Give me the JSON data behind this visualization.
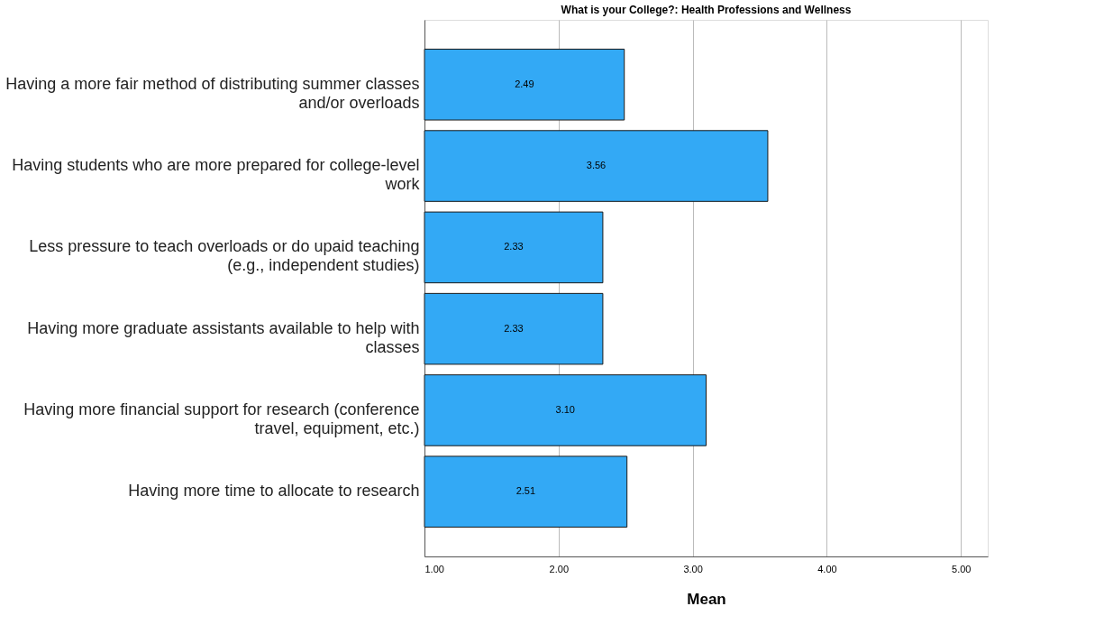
{
  "chart_data": {
    "type": "bar",
    "orientation": "horizontal",
    "title": "What is your College?: Health Professions and Wellness",
    "xlabel": "Mean",
    "categories": [
      "Having a more fair method of distributing summer classes and/or overloads",
      "Having students who are more prepared for college-level work",
      "Less pressure to teach overloads or do upaid teaching (e.g., independent studies)",
      "Having more graduate assistants available to help with classes",
      "Having more financial support for research (conference travel, equipment, etc.)",
      "Having more time to allocate to research"
    ],
    "values": [
      2.49,
      3.56,
      2.33,
      2.33,
      3.1,
      2.51
    ],
    "color": "#33a9f5",
    "xlim": [
      1,
      5.2
    ],
    "xticks": [
      {
        "value": 1,
        "label": "1.00"
      },
      {
        "value": 2,
        "label": "2.00"
      },
      {
        "value": 3,
        "label": "3.00"
      },
      {
        "value": 4,
        "label": "4.00"
      },
      {
        "value": 5,
        "label": "5.00"
      }
    ],
    "grid": "x",
    "value_labels": [
      "2.49",
      "3.56",
      "2.33",
      "2.33",
      "3.10",
      "2.51"
    ]
  }
}
